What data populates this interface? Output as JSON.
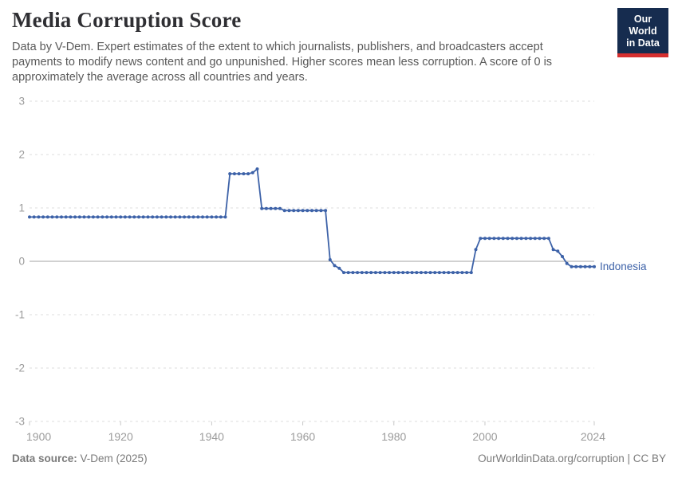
{
  "header": {
    "title": "Media Corruption Score",
    "subtitle": "Data by V-Dem. Expert estimates of the extent to which journalists, publishers, and broadcasters accept payments to modify news content and go unpunished. Higher scores mean less corruption. A score of 0 is approximately the average across all countries and years.",
    "logo": {
      "line1": "Our World",
      "line2": "in Data",
      "bg_color": "#162C4F",
      "bar_color": "#D62F2F"
    }
  },
  "chart_data": {
    "type": "line",
    "title": "Media Corruption Score",
    "xlabel": "",
    "ylabel": "",
    "xlim": [
      1900,
      2024
    ],
    "ylim": [
      -3,
      3
    ],
    "yticks": [
      3,
      2,
      1,
      0,
      -1,
      -2,
      -3
    ],
    "xticks": [
      1900,
      1920,
      1940,
      1960,
      1980,
      2000,
      2024
    ],
    "grid": "dashed-horizontal",
    "legend": "end-of-line-label",
    "axis_text_color": "#9b9b9b",
    "gridline_color": "#dcdcdc",
    "zero_line_color": "#a3a3a3",
    "series": [
      {
        "name": "Indonesia",
        "color": "#3D62A8",
        "year_start": 1900,
        "year_step": 1,
        "values": [
          0.83,
          0.83,
          0.83,
          0.83,
          0.83,
          0.83,
          0.83,
          0.83,
          0.83,
          0.83,
          0.83,
          0.83,
          0.83,
          0.83,
          0.83,
          0.83,
          0.83,
          0.83,
          0.83,
          0.83,
          0.83,
          0.83,
          0.83,
          0.83,
          0.83,
          0.83,
          0.83,
          0.83,
          0.83,
          0.83,
          0.83,
          0.83,
          0.83,
          0.83,
          0.83,
          0.83,
          0.83,
          0.83,
          0.83,
          0.83,
          0.83,
          0.83,
          0.83,
          0.83,
          1.64,
          1.64,
          1.64,
          1.64,
          1.64,
          1.66,
          1.73,
          0.99,
          0.99,
          0.99,
          0.99,
          0.99,
          0.95,
          0.95,
          0.95,
          0.95,
          0.95,
          0.95,
          0.95,
          0.95,
          0.95,
          0.95,
          0.03,
          -0.08,
          -0.13,
          -0.21,
          -0.21,
          -0.21,
          -0.21,
          -0.21,
          -0.21,
          -0.21,
          -0.21,
          -0.21,
          -0.21,
          -0.21,
          -0.21,
          -0.21,
          -0.21,
          -0.21,
          -0.21,
          -0.21,
          -0.21,
          -0.21,
          -0.21,
          -0.21,
          -0.21,
          -0.21,
          -0.21,
          -0.21,
          -0.21,
          -0.21,
          -0.21,
          -0.21,
          0.22,
          0.43,
          0.43,
          0.43,
          0.43,
          0.43,
          0.43,
          0.43,
          0.43,
          0.43,
          0.43,
          0.43,
          0.43,
          0.43,
          0.43,
          0.43,
          0.43,
          0.22,
          0.19,
          0.09,
          -0.04,
          -0.1,
          -0.1,
          -0.1,
          -0.1,
          -0.1,
          -0.1
        ]
      }
    ]
  },
  "footer": {
    "source_label": "Data source:",
    "source_value": " V-Dem (2025)",
    "credit": "OurWorldinData.org/corruption | CC BY"
  }
}
